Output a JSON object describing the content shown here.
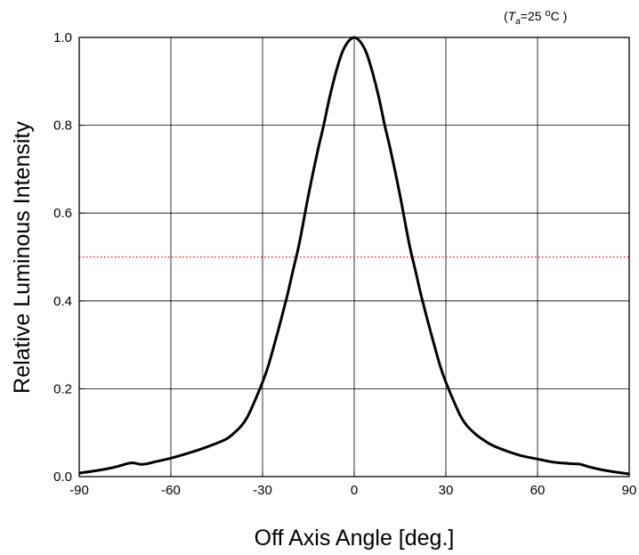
{
  "chart_data": {
    "type": "line",
    "title": "",
    "xlabel": "Off Axis Angle [deg.]",
    "ylabel": "Relative Luminous Intensity",
    "xlim": [
      -90,
      90
    ],
    "ylim": [
      0.0,
      1.0
    ],
    "x_ticks": [
      "-90",
      "-60",
      "-30",
      "0",
      "30",
      "60",
      "90"
    ],
    "y_ticks": [
      "0.0",
      "0.2",
      "0.4",
      "0.6",
      "0.8",
      "1.0"
    ],
    "grid": true,
    "condition": {
      "prefix": "(",
      "symbol": "T",
      "subscript": "a",
      "value": "=25",
      "unit_degree": "o",
      "unit": "C",
      "suffix": " )"
    },
    "reference_line": {
      "y": 0.5,
      "color": "#ff0000",
      "style": "dotted"
    },
    "series": [
      {
        "color": "#000000",
        "x": [
          -90,
          -85,
          -80,
          -77,
          -74,
          -72,
          -70,
          -68,
          -65,
          -60,
          -55,
          -50,
          -45,
          -42,
          -40,
          -37,
          -35,
          -33,
          -30,
          -28,
          -25,
          -22,
          -20,
          -18,
          -15,
          -12,
          -10,
          -8,
          -6,
          -4,
          -2,
          0,
          2,
          4,
          6,
          8,
          10,
          12,
          15,
          18,
          20,
          22,
          25,
          28,
          30,
          33,
          35,
          37,
          40,
          42,
          45,
          50,
          55,
          60,
          65,
          68,
          70,
          72,
          74,
          77,
          80,
          85,
          90
        ],
        "y": [
          0.008,
          0.013,
          0.019,
          0.024,
          0.03,
          0.031,
          0.028,
          0.029,
          0.034,
          0.042,
          0.052,
          0.063,
          0.076,
          0.085,
          0.095,
          0.115,
          0.135,
          0.165,
          0.215,
          0.255,
          0.33,
          0.41,
          0.47,
          0.53,
          0.64,
          0.74,
          0.8,
          0.865,
          0.92,
          0.965,
          0.99,
          1.0,
          0.99,
          0.965,
          0.92,
          0.865,
          0.8,
          0.74,
          0.64,
          0.53,
          0.47,
          0.41,
          0.33,
          0.255,
          0.215,
          0.165,
          0.135,
          0.115,
          0.095,
          0.085,
          0.072,
          0.058,
          0.047,
          0.04,
          0.033,
          0.031,
          0.03,
          0.029,
          0.028,
          0.022,
          0.017,
          0.011,
          0.006
        ]
      }
    ]
  }
}
